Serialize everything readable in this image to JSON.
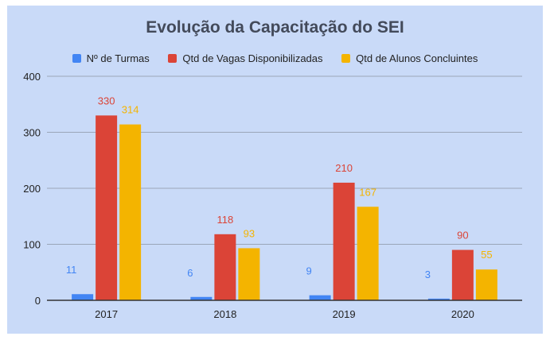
{
  "chart_data": {
    "type": "bar",
    "title": "Evolução da Capacitação do SEI",
    "categories": [
      "2017",
      "2018",
      "2019",
      "2020"
    ],
    "series": [
      {
        "name": "Nº de Turmas",
        "color": "#4285f4",
        "values": [
          11,
          6,
          9,
          3
        ]
      },
      {
        "name": "Qtd de Vagas Disponibilizadas",
        "color": "#db4437",
        "values": [
          330,
          118,
          210,
          90
        ]
      },
      {
        "name": "Qtd de Alunos Concluintes",
        "color": "#f4b400",
        "values": [
          314,
          93,
          167,
          55
        ]
      }
    ],
    "yticks": [
      "0",
      "100",
      "200",
      "300",
      "400"
    ],
    "ylim": [
      0,
      400
    ],
    "grid": true,
    "legend_position": "top"
  }
}
